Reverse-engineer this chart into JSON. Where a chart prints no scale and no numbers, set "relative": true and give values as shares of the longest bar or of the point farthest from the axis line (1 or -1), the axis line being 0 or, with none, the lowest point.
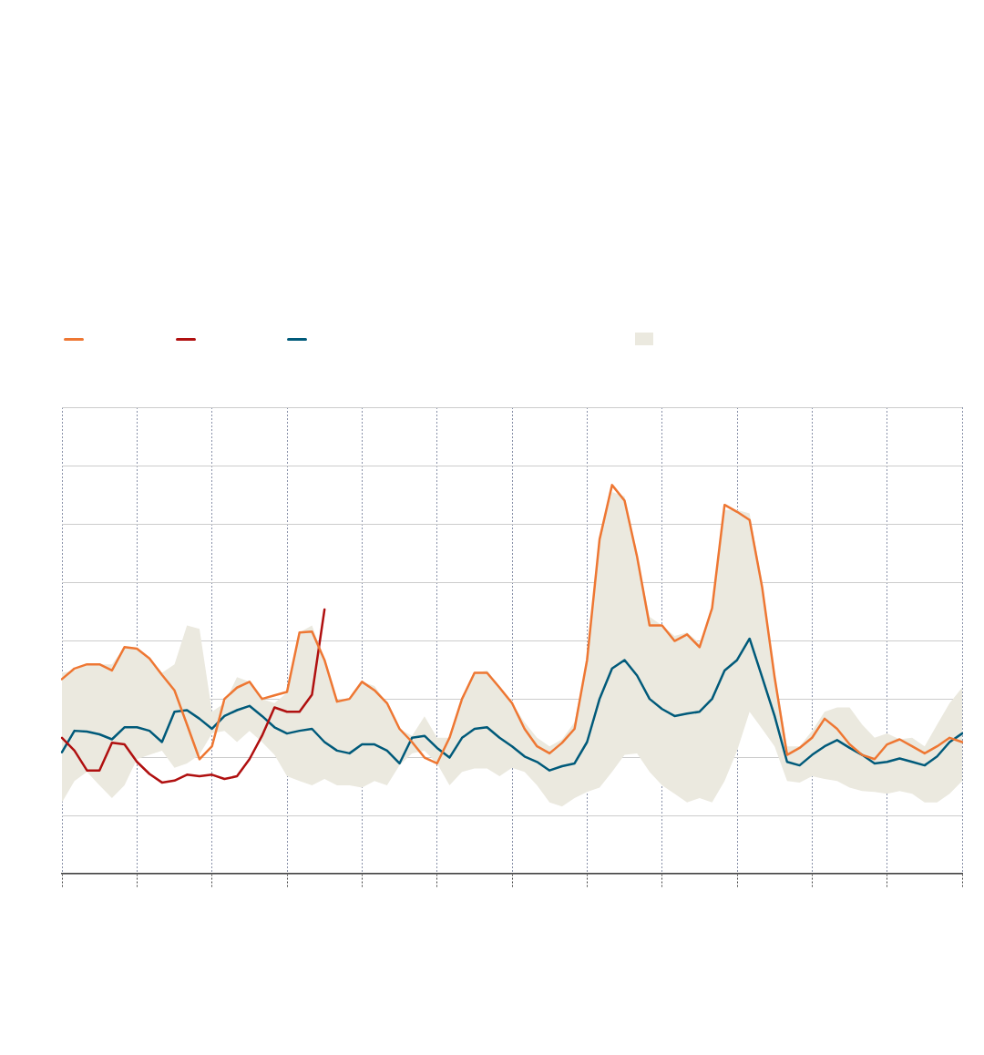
{
  "chart_data": {
    "type": "line",
    "relative": true,
    "grid": true,
    "categories": [
      null,
      null,
      null,
      null,
      null,
      null,
      null,
      null,
      null,
      null,
      null,
      null,
      null,
      null,
      null,
      null,
      null,
      null,
      null,
      null,
      null,
      null,
      null,
      null,
      null,
      null,
      null,
      null,
      null,
      null,
      null,
      null,
      null,
      null,
      null,
      null,
      null,
      null,
      null,
      null,
      null,
      null,
      null,
      null,
      null,
      null,
      null,
      null,
      null,
      null,
      null,
      null,
      null,
      null,
      null,
      null,
      null,
      null,
      null,
      null,
      null,
      null,
      null,
      null,
      null,
      null,
      null,
      null,
      null,
      null,
      null,
      null,
      null
    ],
    "series": [
      {
        "color": "#ee7733",
        "values": [
          0.501,
          0.528,
          0.539,
          0.539,
          0.523,
          0.583,
          0.579,
          0.554,
          0.512,
          0.472,
          0.384,
          0.295,
          0.328,
          0.45,
          0.479,
          0.494,
          0.45,
          0.459,
          0.468,
          0.621,
          0.623,
          0.55,
          0.443,
          0.45,
          0.494,
          0.472,
          0.439,
          0.373,
          0.339,
          0.299,
          0.284,
          0.35,
          0.45,
          0.517,
          0.517,
          0.479,
          0.439,
          0.373,
          0.328,
          0.31,
          0.337,
          0.373,
          0.55,
          0.86,
          1,
          0.96,
          0.816,
          0.639,
          0.639,
          0.599,
          0.616,
          0.583,
          0.683,
          0.949,
          0.931,
          0.91,
          0.738,
          0.506,
          0.306,
          0.324,
          0.35,
          0.399,
          0.373,
          0.333,
          0.306,
          0.295,
          0.333,
          0.346,
          0.328,
          0.31,
          0.328,
          0.35,
          0.339
        ]
      },
      {
        "color": "#b01010",
        "values": [
          0.35,
          0.317,
          0.266,
          0.266,
          0.337,
          0.333,
          0.288,
          0.257,
          0.235,
          0.24,
          0.255,
          0.251,
          0.255,
          0.244,
          0.251,
          0.295,
          0.355,
          0.428,
          0.417,
          0.417,
          0.461,
          0.68,
          null,
          null,
          null,
          null,
          null,
          null,
          null,
          null,
          null,
          null,
          null,
          null,
          null,
          null,
          null,
          null,
          null,
          null,
          null,
          null,
          null,
          null,
          null,
          null,
          null,
          null,
          null,
          null,
          null,
          null,
          null,
          null,
          null,
          null,
          null,
          null,
          null,
          null,
          null,
          null,
          null,
          null,
          null,
          null,
          null,
          null,
          null,
          null,
          null,
          null,
          null
        ]
      },
      {
        "color": "#005a7a",
        "values": [
          0.313,
          0.368,
          0.366,
          0.359,
          0.346,
          0.377,
          0.377,
          0.368,
          0.339,
          0.417,
          0.421,
          0.399,
          0.373,
          0.406,
          0.421,
          0.432,
          0.406,
          0.377,
          0.361,
          0.368,
          0.373,
          0.339,
          0.317,
          0.31,
          0.333,
          0.333,
          0.317,
          0.284,
          0.35,
          0.355,
          0.324,
          0.299,
          0.35,
          0.373,
          0.377,
          0.35,
          0.328,
          0.302,
          0.288,
          0.266,
          0.277,
          0.284,
          0.339,
          0.45,
          0.528,
          0.55,
          0.51,
          0.45,
          0.424,
          0.406,
          0.412,
          0.417,
          0.45,
          0.523,
          0.55,
          0.605,
          0.506,
          0.406,
          0.288,
          0.279,
          0.306,
          0.328,
          0.344,
          0.324,
          0.306,
          0.284,
          0.288,
          0.297,
          0.288,
          0.279,
          0.302,
          0.339,
          0.361
        ]
      },
      {
        "type": "area",
        "color": "#ebe9df",
        "values": [
          null,
          null,
          null,
          null,
          null,
          null,
          null,
          null,
          null,
          null,
          null,
          null,
          null,
          null,
          null,
          null,
          null,
          null,
          null,
          null,
          null,
          null,
          null,
          null,
          null,
          null,
          null,
          null,
          null,
          null,
          null,
          null,
          null,
          null,
          null,
          null,
          null,
          null,
          null,
          null,
          null,
          null,
          null,
          null,
          null,
          null,
          null,
          null,
          null,
          null,
          null,
          null,
          null,
          null,
          null,
          null,
          null,
          null,
          null,
          null,
          null,
          null,
          null,
          null,
          null,
          null,
          null,
          null,
          null,
          null,
          null,
          null,
          null
        ],
        "lower": [
          0.184,
          0.239,
          0.262,
          0.228,
          0.195,
          0.228,
          0.295,
          0.306,
          0.317,
          0.273,
          0.284,
          0.306,
          0.361,
          0.368,
          0.339,
          0.368,
          0.339,
          0.306,
          0.251,
          0.239,
          0.228,
          0.244,
          0.228,
          0.228,
          0.222,
          0.239,
          0.228,
          0.279,
          0.31,
          0.317,
          0.284,
          0.228,
          0.262,
          0.271,
          0.271,
          0.251,
          0.273,
          0.262,
          0.228,
          0.184,
          0.173,
          0.195,
          0.211,
          0.222,
          0.262,
          0.306,
          0.31,
          0.262,
          0.228,
          0.206,
          0.184,
          0.195,
          0.184,
          0.239,
          0.317,
          0.417,
          0.373,
          0.328,
          0.239,
          0.235,
          0.251,
          0.244,
          0.239,
          0.222,
          0.213,
          0.211,
          0.206,
          0.213,
          0.206,
          0.184,
          0.184,
          0.206,
          0.239
        ],
        "upper": [
          0.517,
          0.523,
          0.539,
          0.539,
          0.539,
          0.583,
          0.576,
          0.554,
          0.517,
          0.539,
          0.639,
          0.63,
          0.417,
          0.439,
          0.506,
          0.494,
          0.45,
          0.439,
          0.466,
          0.621,
          0.639,
          0.55,
          0.45,
          0.45,
          0.494,
          0.483,
          0.439,
          0.373,
          0.355,
          0.405,
          0.35,
          0.35,
          0.45,
          0.517,
          0.523,
          0.483,
          0.439,
          0.39,
          0.35,
          0.328,
          0.346,
          0.39,
          0.55,
          0.86,
          0.982,
          0.971,
          0.816,
          0.661,
          0.639,
          0.612,
          0.621,
          0.594,
          0.672,
          0.936,
          0.936,
          0.927,
          0.75,
          0.517,
          0.328,
          0.328,
          0.368,
          0.417,
          0.428,
          0.428,
          0.384,
          0.35,
          0.361,
          0.346,
          0.35,
          0.328,
          0.384,
          0.439,
          0.479
        ]
      }
    ]
  }
}
